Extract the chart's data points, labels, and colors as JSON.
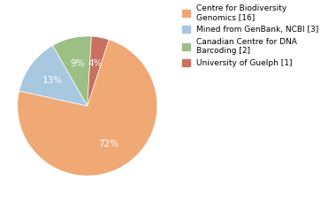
{
  "slices": [
    72,
    13,
    9,
    4
  ],
  "labels": [
    "Centre for Biodiversity\nGenomics [16]",
    "Mined from GenBank, NCBI [3]",
    "Canadian Centre for DNA\nBarcoding [2]",
    "University of Guelph [1]"
  ],
  "colors": [
    "#F0A875",
    "#A8C8E0",
    "#9BBF85",
    "#C97060"
  ],
  "pct_labels": [
    "72%",
    "13%",
    "9%",
    "4%"
  ],
  "startangle": 72,
  "background_color": "#ffffff"
}
